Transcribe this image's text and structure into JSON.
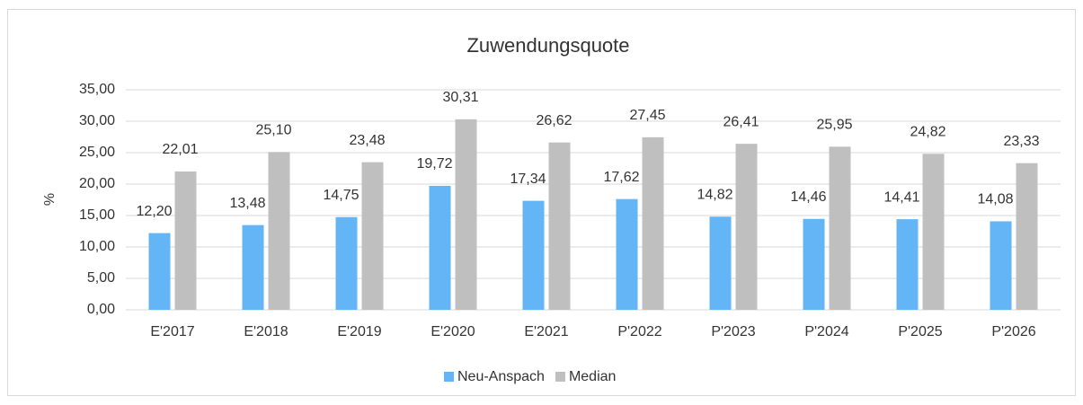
{
  "chart_data": {
    "type": "bar",
    "title": "Zuwendungsquote",
    "y_label": "%",
    "categories": [
      "E'2017",
      "E'2018",
      "E'2019",
      "E'2020",
      "E'2021",
      "P'2022",
      "P'2023",
      "P'2024",
      "P'2025",
      "P'2026"
    ],
    "series": [
      {
        "name": "Neu-Anspach",
        "color": "#63b5f6",
        "values": [
          12.2,
          13.48,
          14.75,
          19.72,
          17.34,
          17.62,
          14.82,
          14.46,
          14.41,
          14.08
        ],
        "value_labels": [
          "12,20",
          "13,48",
          "14,75",
          "19,72",
          "17,34",
          "17,62",
          "14,82",
          "14,46",
          "14,41",
          "14,08"
        ]
      },
      {
        "name": "Median",
        "color": "#bfbfbf",
        "values": [
          22.01,
          25.1,
          23.48,
          30.31,
          26.62,
          27.45,
          26.41,
          25.95,
          24.82,
          23.33
        ],
        "value_labels": [
          "22,01",
          "25,10",
          "23,48",
          "30,31",
          "26,62",
          "27,45",
          "26,41",
          "25,95",
          "24,82",
          "23,33"
        ]
      }
    ],
    "ylim": [
      0,
      35
    ],
    "yticks": [
      {
        "value": 0,
        "label": "0,00"
      },
      {
        "value": 5,
        "label": "5,00"
      },
      {
        "value": 10,
        "label": "10,00"
      },
      {
        "value": 15,
        "label": "15,00"
      },
      {
        "value": 20,
        "label": "20,00"
      },
      {
        "value": 25,
        "label": "25,00"
      },
      {
        "value": 30,
        "label": "30,00"
      },
      {
        "value": 35,
        "label": "35,00"
      }
    ],
    "grid": true,
    "legend": "bottom"
  }
}
